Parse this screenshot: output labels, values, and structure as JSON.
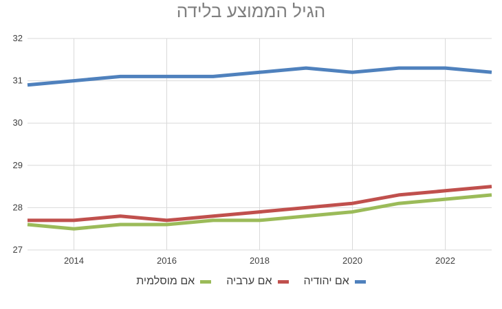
{
  "chart_data": {
    "type": "line",
    "title": "הגיל הממוצע בלידה",
    "xlabel": "",
    "ylabel": "",
    "x": [
      2013,
      2014,
      2015,
      2016,
      2017,
      2018,
      2019,
      2020,
      2021,
      2022,
      2023
    ],
    "xlim": [
      2013,
      2023
    ],
    "xticks": [
      2014,
      2016,
      2018,
      2020,
      2022
    ],
    "ylim": [
      27,
      32
    ],
    "yticks": [
      27,
      28,
      29,
      30,
      31,
      32
    ],
    "grid": true,
    "legend_position": "bottom",
    "series": [
      {
        "name": "אם יהודיה",
        "color": "#4f81bd",
        "values": [
          30.9,
          31.0,
          31.1,
          31.1,
          31.1,
          31.2,
          31.3,
          31.2,
          31.3,
          31.3,
          31.2
        ]
      },
      {
        "name": "אם ערביה",
        "color": "#c0504d",
        "values": [
          27.7,
          27.7,
          27.8,
          27.7,
          27.8,
          27.9,
          28.0,
          28.1,
          28.3,
          28.4,
          28.5
        ]
      },
      {
        "name": "אם מוסלמית",
        "color": "#9bbb59",
        "values": [
          27.6,
          27.5,
          27.6,
          27.6,
          27.7,
          27.7,
          27.8,
          27.9,
          28.1,
          28.2,
          28.3
        ]
      }
    ]
  }
}
